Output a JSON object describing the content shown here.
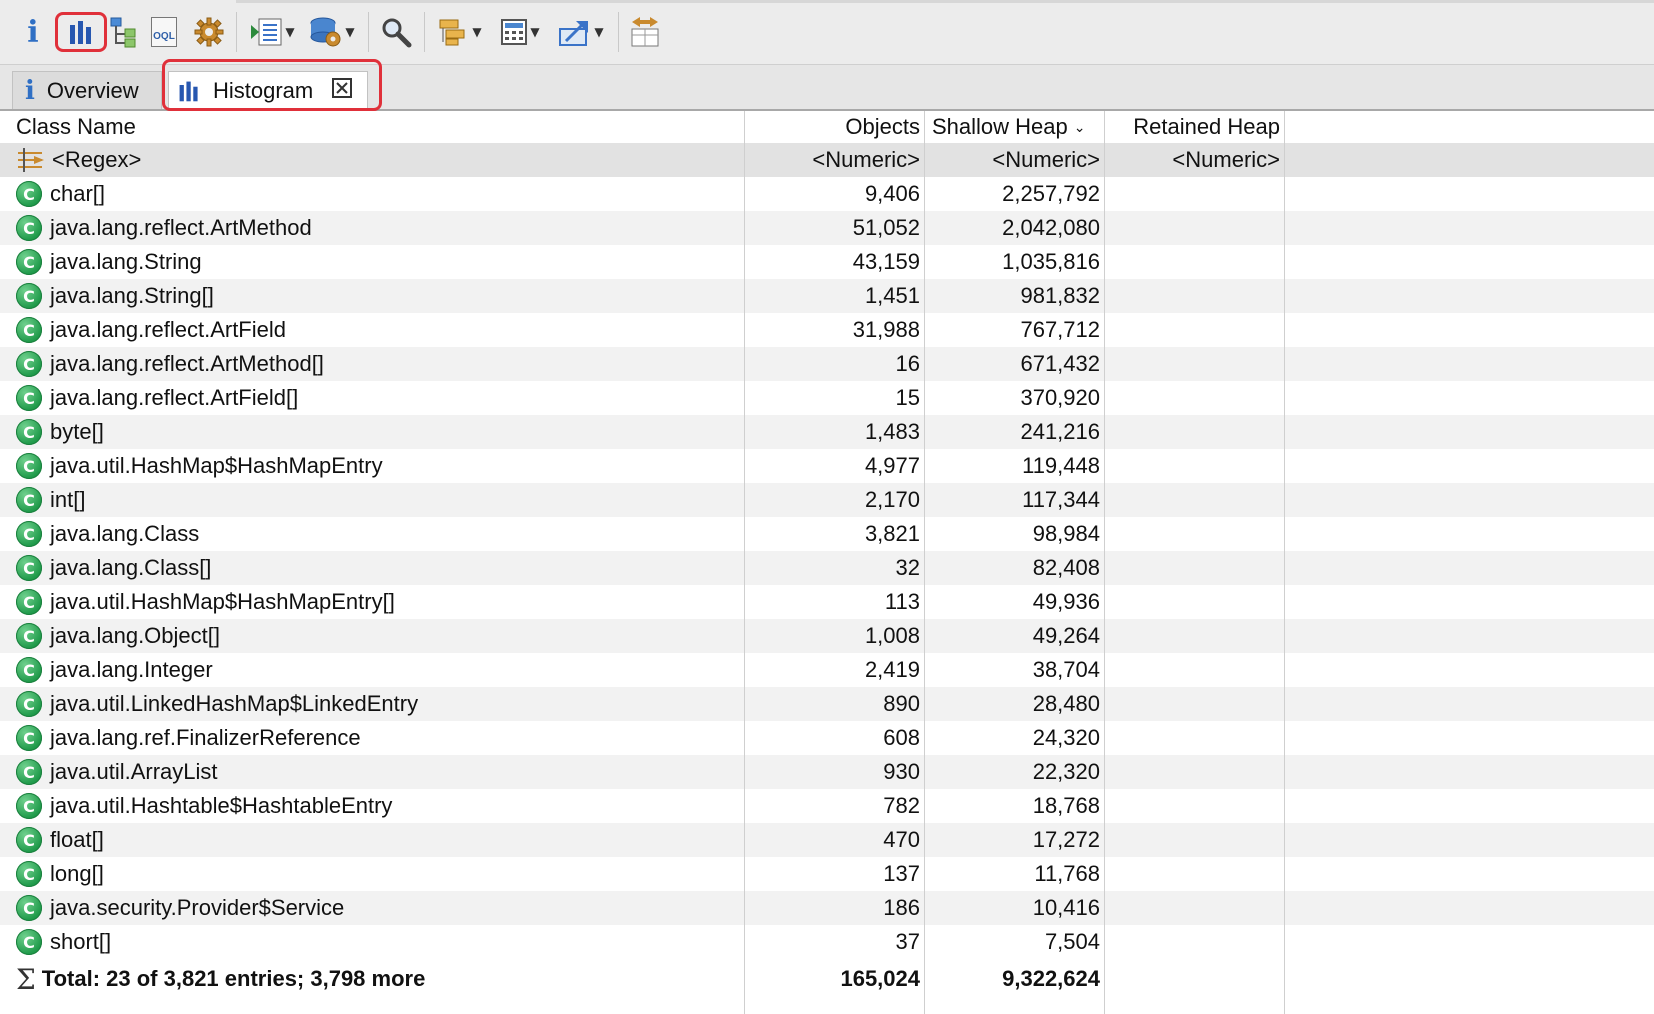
{
  "toolbar": {
    "buttons": [
      {
        "name": "info",
        "icon": "info-icon",
        "glyph": "i"
      },
      {
        "name": "histogram",
        "icon": "histogram-icon"
      },
      {
        "name": "dominator-tree",
        "icon": "dominator-tree-icon"
      },
      {
        "name": "oql",
        "icon": "oql-icon",
        "glyph": "OQL"
      },
      {
        "name": "heap-dump-overview",
        "icon": "gear-icon"
      },
      {
        "name": "run-report",
        "icon": "report-icon"
      },
      {
        "name": "query-browser",
        "icon": "query-browser-icon"
      },
      {
        "name": "find-object",
        "icon": "search-icon"
      },
      {
        "name": "group-by",
        "icon": "group-icon"
      },
      {
        "name": "calculate-retained",
        "icon": "calculator-icon"
      },
      {
        "name": "export",
        "icon": "export-icon"
      },
      {
        "name": "compare",
        "icon": "compare-icon"
      }
    ],
    "highlighted": "histogram",
    "accent_color": "#e0303a"
  },
  "tabs": [
    {
      "label": "Overview",
      "icon": "info-icon",
      "active": false
    },
    {
      "label": "Histogram",
      "icon": "histogram-icon",
      "active": true,
      "closable": true
    }
  ],
  "table": {
    "columns": {
      "class_name": "Class Name",
      "objects": "Objects",
      "shallow_heap": "Shallow Heap",
      "retained_heap": "Retained Heap"
    },
    "sort_indicator": "⌄",
    "filter_row": {
      "class_name": "<Regex>",
      "objects": "<Numeric>",
      "shallow_heap": "<Numeric>",
      "retained_heap": "<Numeric>"
    },
    "rows": [
      {
        "class_name": "char[]",
        "objects": "9,406",
        "shallow_heap": "2,257,792"
      },
      {
        "class_name": "java.lang.reflect.ArtMethod",
        "objects": "51,052",
        "shallow_heap": "2,042,080"
      },
      {
        "class_name": "java.lang.String",
        "objects": "43,159",
        "shallow_heap": "1,035,816"
      },
      {
        "class_name": "java.lang.String[]",
        "objects": "1,451",
        "shallow_heap": "981,832"
      },
      {
        "class_name": "java.lang.reflect.ArtField",
        "objects": "31,988",
        "shallow_heap": "767,712"
      },
      {
        "class_name": "java.lang.reflect.ArtMethod[]",
        "objects": "16",
        "shallow_heap": "671,432"
      },
      {
        "class_name": "java.lang.reflect.ArtField[]",
        "objects": "15",
        "shallow_heap": "370,920"
      },
      {
        "class_name": "byte[]",
        "objects": "1,483",
        "shallow_heap": "241,216"
      },
      {
        "class_name": "java.util.HashMap$HashMapEntry",
        "objects": "4,977",
        "shallow_heap": "119,448"
      },
      {
        "class_name": "int[]",
        "objects": "2,170",
        "shallow_heap": "117,344"
      },
      {
        "class_name": "java.lang.Class",
        "objects": "3,821",
        "shallow_heap": "98,984"
      },
      {
        "class_name": "java.lang.Class[]",
        "objects": "32",
        "shallow_heap": "82,408"
      },
      {
        "class_name": "java.util.HashMap$HashMapEntry[]",
        "objects": "113",
        "shallow_heap": "49,936"
      },
      {
        "class_name": "java.lang.Object[]",
        "objects": "1,008",
        "shallow_heap": "49,264"
      },
      {
        "class_name": "java.lang.Integer",
        "objects": "2,419",
        "shallow_heap": "38,704"
      },
      {
        "class_name": "java.util.LinkedHashMap$LinkedEntry",
        "objects": "890",
        "shallow_heap": "28,480"
      },
      {
        "class_name": "java.lang.ref.FinalizerReference",
        "objects": "608",
        "shallow_heap": "24,320"
      },
      {
        "class_name": "java.util.ArrayList",
        "objects": "930",
        "shallow_heap": "22,320"
      },
      {
        "class_name": "java.util.Hashtable$HashtableEntry",
        "objects": "782",
        "shallow_heap": "18,768"
      },
      {
        "class_name": "float[]",
        "objects": "470",
        "shallow_heap": "17,272"
      },
      {
        "class_name": "long[]",
        "objects": "137",
        "shallow_heap": "11,768"
      },
      {
        "class_name": "java.security.Provider$Service",
        "objects": "186",
        "shallow_heap": "10,416"
      },
      {
        "class_name": "short[]",
        "objects": "37",
        "shallow_heap": "7,504"
      }
    ],
    "total": {
      "label": "Total: 23 of 3,821 entries; 3,798 more",
      "objects": "165,024",
      "shallow_heap": "9,322,624"
    },
    "class_icon_glyph": "C",
    "class_icon_color": "#1f9a4a"
  }
}
